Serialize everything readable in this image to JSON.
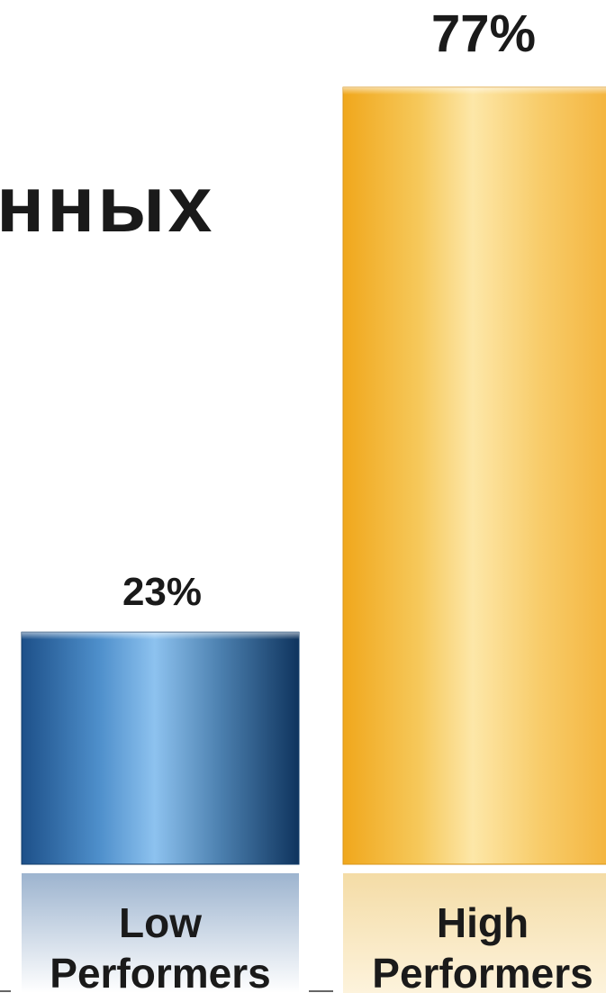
{
  "title_fragment": "нных",
  "chart_data": {
    "type": "bar",
    "categories": [
      "Low Performers",
      "High Performers"
    ],
    "category_lines": [
      [
        "Low",
        "Performers"
      ],
      [
        "High",
        "Performers"
      ]
    ],
    "values": [
      23,
      77
    ],
    "data_labels": [
      "23%",
      "77%"
    ],
    "ylim": [
      0,
      77
    ],
    "title": "",
    "xlabel": "",
    "ylabel": "",
    "grid": false,
    "colors": {
      "low": [
        "#1d5089",
        "#4e8fcb",
        "#8dc2ef",
        "#4b7fae",
        "#0f345e"
      ],
      "high": [
        "#f0a71c",
        "#f6c85a",
        "#fde7a8",
        "#f8cd6c",
        "#f3b33b"
      ],
      "label_text": "#1a1a1a"
    }
  }
}
